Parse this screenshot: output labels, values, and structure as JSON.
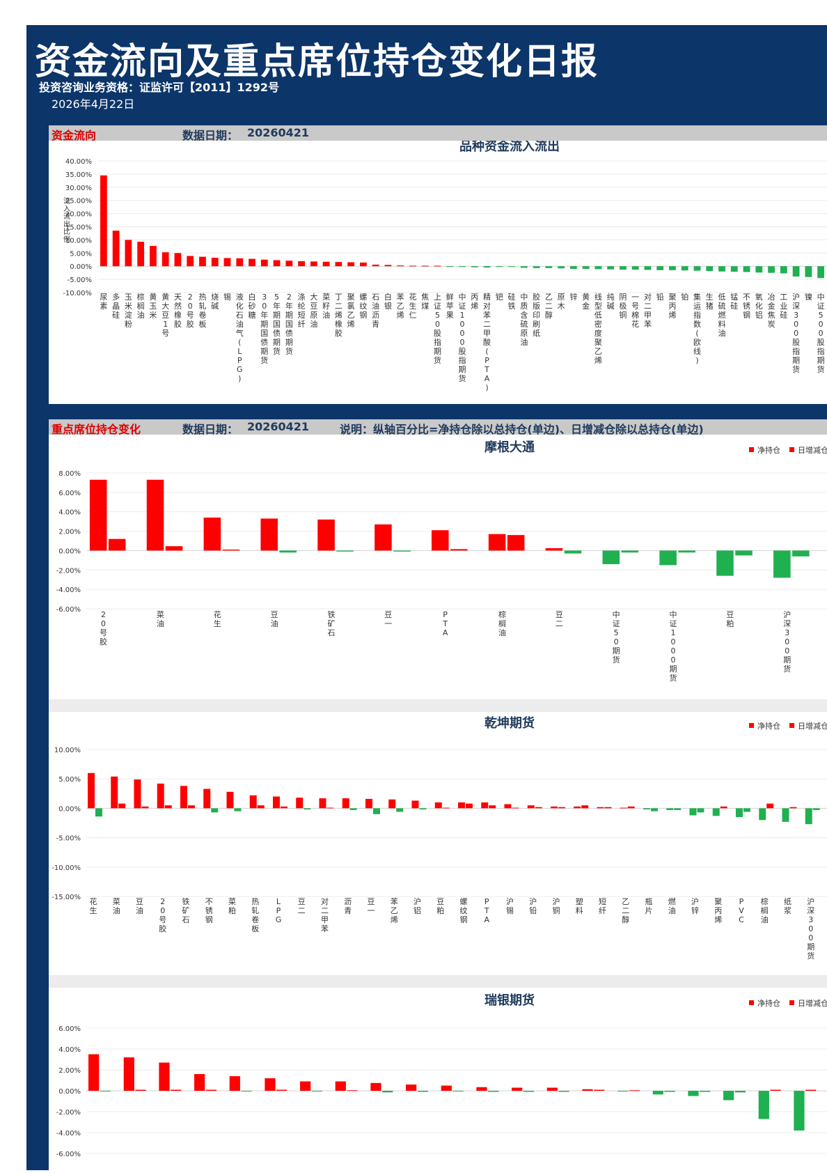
{
  "header": {
    "title": "资金流向及重点席位持仓变化日报",
    "qualification": "投资咨询业务资格：证监许可【2011】1292号",
    "date": "2026年4月22日"
  },
  "flow_section": {
    "title": "资金流向",
    "date_label": "数据日期：",
    "date": "20260421"
  },
  "position_section": {
    "title": "重点席位持仓变化",
    "date_label": "数据日期：",
    "date": "20260421",
    "note": "说明：纵轴百分比=净持仓除以总持仓(单边)、日增减仓除以总持仓(单边)"
  },
  "colors": {
    "positive": "#ff0000",
    "negative": "#1fb050",
    "frame": "#0c3569",
    "title": "#1f3a5c"
  },
  "chart_data": [
    {
      "id": "flow",
      "type": "bar",
      "title": "品种资金流入流出",
      "ylabel": "流入流出比例",
      "ylim": [
        -10,
        40
      ],
      "yticks": [
        40,
        35,
        30,
        25,
        20,
        15,
        10,
        5,
        0,
        -5,
        -10
      ],
      "y_tick_labels": [
        "40.00%",
        "35.00%",
        "30.00%",
        "25.00%",
        "20.00%",
        "15.00%",
        "10.00%",
        "5.00%",
        "0.00%",
        "-5.00%",
        "-10.00%"
      ],
      "categories": [
        "尿素",
        "多晶硅",
        "玉米淀粉",
        "棕榈油",
        "黄玉米",
        "黄大豆1号",
        "天然橡胶",
        "20号胶",
        "热轧卷板",
        "烧碱",
        "锡",
        "液化石油气(LPG)",
        "白砂糖",
        "30年期国债期货",
        "5年期国债期货",
        "2年期国债期货",
        "涤纶短纤",
        "大豆原油",
        "菜籽油",
        "丁二烯橡胶",
        "聚氯乙烯",
        "螺纹钢",
        "石油沥青",
        "白银",
        "苯乙烯",
        "花生仁",
        "焦煤",
        "上证50股指期货",
        "鲜苹果",
        "中证1000股指期货",
        "丙烯",
        "精对苯二甲酸(PTA)",
        "钯",
        "硅铁",
        "中质含硫原油",
        "胶版印刷纸",
        "乙二醇",
        "原木",
        "锌",
        "黄金",
        "线型低密度聚乙烯",
        "纯碱",
        "阴极铜",
        "一号棉花",
        "对二甲苯",
        "铅",
        "聚丙烯",
        "铂",
        "集运指数(欧线)",
        "生猪",
        "低硫燃料油",
        "锰硅",
        "不锈钢",
        "氧化铝",
        "冶金焦炭",
        "工业硅",
        "沪深300股指期货",
        "镍",
        "中证500股指期货"
      ],
      "values": [
        34.5,
        13.5,
        10.0,
        9.3,
        7.7,
        5.3,
        5.0,
        3.9,
        3.6,
        3.2,
        3.1,
        3.0,
        2.8,
        2.5,
        2.3,
        2.1,
        1.9,
        1.8,
        1.7,
        1.6,
        1.5,
        1.4,
        0.6,
        0.5,
        0.3,
        0.2,
        0.2,
        0.2,
        -0.2,
        -0.3,
        -0.4,
        -0.5,
        -0.3,
        -0.2,
        -0.6,
        -0.7,
        -0.7,
        -0.8,
        -1.0,
        -1.0,
        -1.1,
        -1.2,
        -1.3,
        -1.3,
        -1.4,
        -1.5,
        -1.5,
        -1.6,
        -1.7,
        -1.8,
        -2.0,
        -2.1,
        -2.2,
        -2.4,
        -2.5,
        -2.7,
        -3.9,
        -4.1,
        -4.5
      ]
    },
    {
      "id": "morgan",
      "type": "bar",
      "title": "摩根大通",
      "ylim": [
        -6,
        8
      ],
      "yticks": [
        8,
        6,
        4,
        2,
        0,
        -2,
        -4,
        -6
      ],
      "y_tick_labels": [
        "8.00%",
        "6.00%",
        "4.00%",
        "2.00%",
        "0.00%",
        "-2.00%",
        "-4.00%",
        "-6.00%"
      ],
      "legend": [
        "净持仓",
        "日增减仓"
      ],
      "categories": [
        "20号胶",
        "菜油",
        "花生",
        "豆油",
        "铁矿石",
        "豆一",
        "PTA",
        "棕榈油",
        "豆二",
        "中证50期货",
        "中证1000期货",
        "豆粕",
        "沪深300期货"
      ],
      "series": [
        {
          "name": "净持仓",
          "values": [
            7.3,
            7.3,
            3.4,
            3.3,
            3.2,
            2.7,
            2.1,
            1.7,
            0.25,
            -1.4,
            -1.5,
            -2.6,
            -2.8
          ]
        },
        {
          "name": "日增减仓",
          "values": [
            1.2,
            0.45,
            0.1,
            -0.2,
            -0.1,
            -0.1,
            0.15,
            1.6,
            -0.3,
            -0.2,
            -0.2,
            -0.5,
            -0.6
          ]
        }
      ]
    },
    {
      "id": "qiankun",
      "type": "bar",
      "title": "乾坤期货",
      "ylim": [
        -15,
        10
      ],
      "yticks": [
        10,
        5,
        0,
        -5,
        -10,
        -15
      ],
      "y_tick_labels": [
        "10.00%",
        "5.00%",
        "0.00%",
        "-5.00%",
        "-10.00%",
        "-15.00%"
      ],
      "legend": [
        "净持仓",
        "日增减仓"
      ],
      "categories": [
        "花生",
        "菜油",
        "豆油",
        "20号胶",
        "铁矿石",
        "不锈钢",
        "菜粕",
        "热轧卷板",
        "LPG",
        "豆二",
        "对二甲苯",
        "沥青",
        "豆一",
        "苯乙烯",
        "沪铝",
        "豆粕",
        "螺纹钢",
        "PTA",
        "沪锡",
        "沪铅",
        "沪铜",
        "塑料",
        "短纤",
        "乙二醇",
        "瓶片",
        "燃油",
        "沪锌",
        "聚丙烯",
        "PVC",
        "棕榈油",
        "纸浆",
        "沪深300期货"
      ],
      "series": [
        {
          "name": "净持仓",
          "values": [
            6.0,
            5.4,
            4.9,
            4.2,
            3.8,
            3.3,
            2.8,
            2.2,
            2.0,
            1.8,
            1.7,
            1.7,
            1.6,
            1.5,
            1.3,
            1.0,
            1.0,
            1.0,
            0.7,
            0.5,
            0.3,
            0.3,
            0.2,
            0.1,
            -0.2,
            -0.3,
            -1.2,
            -1.3,
            -1.5,
            -2.0,
            -2.3,
            -2.7
          ]
        },
        {
          "name": "日增减仓",
          "values": [
            -1.4,
            0.8,
            0.3,
            0.5,
            0.5,
            -0.7,
            -0.5,
            0.5,
            0.3,
            -0.2,
            0.1,
            -0.3,
            -1.0,
            -0.6,
            -0.2,
            0.1,
            0.8,
            0.5,
            0.1,
            0.2,
            0.2,
            0.5,
            0.2,
            0.3,
            -0.5,
            -0.3,
            -0.7,
            0.3,
            -0.6,
            0.8,
            0.2,
            -0.3
          ]
        }
      ]
    },
    {
      "id": "ubs",
      "type": "bar",
      "title": "瑞银期货",
      "ylim": [
        -6,
        6
      ],
      "yticks": [
        6,
        4,
        2,
        0,
        -2,
        -4,
        -6
      ],
      "y_tick_labels": [
        "6.00%",
        "4.00%",
        "2.00%",
        "0.00%",
        "-2.00%",
        "-4.00%",
        "-6.00%"
      ],
      "legend": [
        "净持仓",
        "日增减仓"
      ],
      "series": [
        {
          "name": "净持仓",
          "values": [
            3.5,
            3.2,
            2.7,
            1.6,
            1.4,
            1.2,
            0.9,
            0.9,
            0.75,
            0.6,
            0.5,
            0.35,
            0.3,
            0.3,
            0.15,
            -0.05,
            -0.35,
            -0.5,
            -0.9,
            -2.7,
            -3.8
          ]
        },
        {
          "name": "日增减仓",
          "values": [
            -0.05,
            0.1,
            0.1,
            0.1,
            -0.05,
            0.1,
            -0.05,
            0.05,
            -0.15,
            -0.1,
            -0.05,
            -0.1,
            -0.1,
            -0.1,
            0.1,
            0.05,
            -0.1,
            -0.1,
            -0.15,
            0.1,
            0.1
          ]
        }
      ]
    }
  ]
}
